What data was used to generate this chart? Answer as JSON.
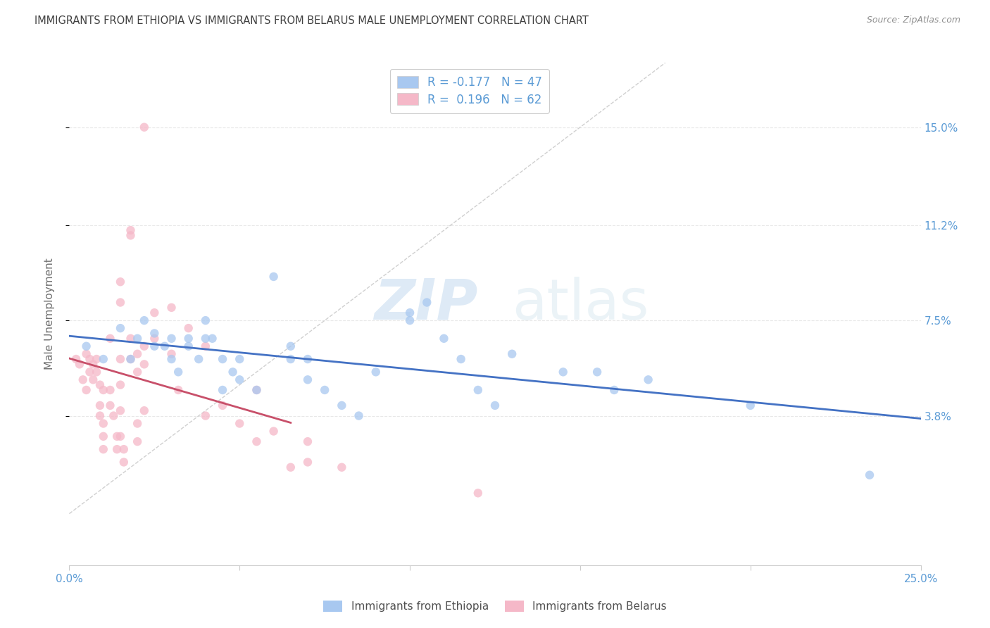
{
  "title": "IMMIGRANTS FROM ETHIOPIA VS IMMIGRANTS FROM BELARUS MALE UNEMPLOYMENT CORRELATION CHART",
  "source": "Source: ZipAtlas.com",
  "ylabel": "Male Unemployment",
  "ytick_labels": [
    "3.8%",
    "7.5%",
    "11.2%",
    "15.0%"
  ],
  "ytick_values": [
    0.038,
    0.075,
    0.112,
    0.15
  ],
  "xmin": 0.0,
  "xmax": 0.25,
  "ymin": -0.02,
  "ymax": 0.175,
  "watermark_top": "ZIP",
  "watermark_bottom": "atlas",
  "legend_entries": [
    {
      "label": "R = -0.177   N = 47",
      "color": "#a8c8f0"
    },
    {
      "label": "R =  0.196   N = 62",
      "color": "#f5b8c8"
    }
  ],
  "ethiopia_color": "#a8c8f0",
  "belarus_color": "#f5b8c8",
  "trendline_ethiopia_color": "#4472c4",
  "trendline_belarus_color": "#c8506a",
  "diagonal_color": "#d0d0d0",
  "background_color": "#ffffff",
  "grid_color": "#e8e8e8",
  "axis_label_color": "#5b9bd5",
  "title_color": "#404040",
  "source_color": "#909090",
  "ethiopia_scatter": [
    [
      0.005,
      0.065
    ],
    [
      0.01,
      0.06
    ],
    [
      0.015,
      0.072
    ],
    [
      0.018,
      0.06
    ],
    [
      0.02,
      0.068
    ],
    [
      0.022,
      0.075
    ],
    [
      0.025,
      0.065
    ],
    [
      0.025,
      0.07
    ],
    [
      0.028,
      0.065
    ],
    [
      0.03,
      0.068
    ],
    [
      0.03,
      0.06
    ],
    [
      0.032,
      0.055
    ],
    [
      0.035,
      0.065
    ],
    [
      0.035,
      0.068
    ],
    [
      0.038,
      0.06
    ],
    [
      0.04,
      0.068
    ],
    [
      0.04,
      0.075
    ],
    [
      0.042,
      0.068
    ],
    [
      0.045,
      0.048
    ],
    [
      0.045,
      0.06
    ],
    [
      0.048,
      0.055
    ],
    [
      0.05,
      0.06
    ],
    [
      0.05,
      0.052
    ],
    [
      0.055,
      0.048
    ],
    [
      0.06,
      0.092
    ],
    [
      0.065,
      0.06
    ],
    [
      0.065,
      0.065
    ],
    [
      0.07,
      0.06
    ],
    [
      0.07,
      0.052
    ],
    [
      0.075,
      0.048
    ],
    [
      0.08,
      0.042
    ],
    [
      0.085,
      0.038
    ],
    [
      0.09,
      0.055
    ],
    [
      0.1,
      0.078
    ],
    [
      0.1,
      0.075
    ],
    [
      0.105,
      0.082
    ],
    [
      0.11,
      0.068
    ],
    [
      0.115,
      0.06
    ],
    [
      0.12,
      0.048
    ],
    [
      0.125,
      0.042
    ],
    [
      0.13,
      0.062
    ],
    [
      0.145,
      0.055
    ],
    [
      0.155,
      0.055
    ],
    [
      0.16,
      0.048
    ],
    [
      0.17,
      0.052
    ],
    [
      0.2,
      0.042
    ],
    [
      0.235,
      0.015
    ]
  ],
  "belarus_scatter": [
    [
      0.002,
      0.06
    ],
    [
      0.003,
      0.058
    ],
    [
      0.004,
      0.052
    ],
    [
      0.005,
      0.048
    ],
    [
      0.005,
      0.062
    ],
    [
      0.006,
      0.06
    ],
    [
      0.006,
      0.055
    ],
    [
      0.007,
      0.052
    ],
    [
      0.007,
      0.058
    ],
    [
      0.008,
      0.055
    ],
    [
      0.008,
      0.06
    ],
    [
      0.009,
      0.05
    ],
    [
      0.009,
      0.042
    ],
    [
      0.009,
      0.038
    ],
    [
      0.01,
      0.048
    ],
    [
      0.01,
      0.035
    ],
    [
      0.01,
      0.03
    ],
    [
      0.01,
      0.025
    ],
    [
      0.012,
      0.068
    ],
    [
      0.012,
      0.048
    ],
    [
      0.012,
      0.042
    ],
    [
      0.013,
      0.038
    ],
    [
      0.014,
      0.03
    ],
    [
      0.014,
      0.025
    ],
    [
      0.015,
      0.09
    ],
    [
      0.015,
      0.082
    ],
    [
      0.015,
      0.06
    ],
    [
      0.015,
      0.05
    ],
    [
      0.015,
      0.04
    ],
    [
      0.015,
      0.03
    ],
    [
      0.016,
      0.025
    ],
    [
      0.016,
      0.02
    ],
    [
      0.018,
      0.11
    ],
    [
      0.018,
      0.108
    ],
    [
      0.018,
      0.068
    ],
    [
      0.018,
      0.06
    ],
    [
      0.02,
      0.062
    ],
    [
      0.02,
      0.055
    ],
    [
      0.02,
      0.035
    ],
    [
      0.02,
      0.028
    ],
    [
      0.022,
      0.15
    ],
    [
      0.022,
      0.065
    ],
    [
      0.022,
      0.058
    ],
    [
      0.022,
      0.04
    ],
    [
      0.025,
      0.078
    ],
    [
      0.025,
      0.068
    ],
    [
      0.03,
      0.08
    ],
    [
      0.03,
      0.062
    ],
    [
      0.032,
      0.048
    ],
    [
      0.035,
      0.072
    ],
    [
      0.04,
      0.065
    ],
    [
      0.04,
      0.038
    ],
    [
      0.045,
      0.042
    ],
    [
      0.05,
      0.035
    ],
    [
      0.055,
      0.048
    ],
    [
      0.055,
      0.028
    ],
    [
      0.06,
      0.032
    ],
    [
      0.065,
      0.018
    ],
    [
      0.07,
      0.028
    ],
    [
      0.07,
      0.02
    ],
    [
      0.08,
      0.018
    ],
    [
      0.12,
      0.008
    ]
  ],
  "title_fontsize": 10.5,
  "source_fontsize": 9,
  "tick_fontsize": 11,
  "ylabel_fontsize": 11,
  "legend_fontsize": 12,
  "scatter_size": 80,
  "scatter_alpha": 0.75
}
